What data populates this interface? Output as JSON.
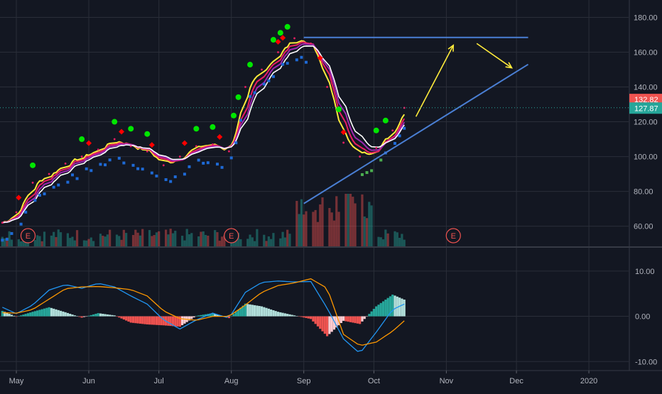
{
  "colors": {
    "background": "#131722",
    "grid": "#2a2e39",
    "axis_text": "#b2b5be",
    "up": "#26a69a",
    "down": "#ef5350",
    "price_label": "#ef5350",
    "current_label": "#26a69a",
    "macd": "#2196f3",
    "signal": "#ff9800",
    "ribbon_yellow": "#ffeb3b",
    "ribbon_pink": "#e91e63",
    "ribbon_purple": "#9c27b0",
    "ribbon_white": "#ffffff",
    "stop_blue": "#1e6ad6",
    "stop_green": "#4caf50",
    "signal_buy": "#00e600",
    "signal_sell": "#ff0000",
    "trend_line": "#4a7fd4",
    "arrow": "#ffeb3b"
  },
  "price_axis": {
    "ticks": [
      "180.00",
      "160.00",
      "140.00",
      "120.00",
      "100.00",
      "80.00",
      "60.00"
    ],
    "last_price_label": "132.82",
    "current_price_label": "127.87"
  },
  "macd_axis": {
    "ticks": [
      "10.00",
      "0.00",
      "-10.00"
    ]
  },
  "time_axis": {
    "ticks": [
      "May",
      "Jun",
      "Jul",
      "Aug",
      "Sep",
      "Oct",
      "Nov",
      "Dec",
      "2020"
    ]
  },
  "earnings_markers": [
    "E",
    "E",
    "E"
  ],
  "chart_data": [
    {
      "type": "line",
      "title": "",
      "xlabel": "",
      "ylabel": "",
      "x": [
        "Apr 25",
        "May 1",
        "May 8",
        "May 15",
        "May 22",
        "May 29",
        "Jun 5",
        "Jun 12",
        "Jun 19",
        "Jun 26",
        "Jul 3",
        "Jul 10",
        "Jul 17",
        "Jul 24",
        "Jul 31",
        "Aug 7",
        "Aug 14",
        "Aug 21",
        "Aug 28",
        "Sep 4",
        "Sep 11",
        "Sep 18",
        "Sep 25",
        "Oct 2",
        "Oct 9",
        "Oct 14"
      ],
      "series": [
        {
          "values": [
            62,
            68,
            85,
            90,
            96,
            100,
            104,
            110,
            106,
            103,
            95,
            100,
            106,
            107,
            103,
            140,
            150,
            160,
            168,
            165,
            140,
            108,
            100,
            105,
            115,
            128
          ]
        }
      ],
      "ylim": [
        48,
        190
      ],
      "xlim": [
        "Apr 24",
        "Jan 18"
      ],
      "y_axis_side": "right",
      "grid": true,
      "current_price": 127.87,
      "last_close_marker": 132.82,
      "annotations": [
        {
          "type": "horizontal_line",
          "y": 168.5,
          "from": "Sep 1",
          "to": "Dec 6"
        },
        {
          "type": "trend_line",
          "from": [
            "Sep 1",
            73
          ],
          "to": [
            "Dec 6",
            153
          ]
        },
        {
          "type": "arrow",
          "from": [
            "Oct 19",
            123
          ],
          "to": [
            "Nov 4",
            164
          ]
        },
        {
          "type": "arrow",
          "from": [
            "Nov 14",
            165
          ],
          "to": [
            "Nov 29",
            151
          ]
        }
      ]
    },
    {
      "type": "bar",
      "title": "",
      "xlabel": "",
      "ylabel": "",
      "x": [
        "Apr 25",
        "May 1",
        "May 8",
        "May 15",
        "May 22",
        "May 29",
        "Jun 5",
        "Jun 12",
        "Jun 19",
        "Jun 26",
        "Jul 3",
        "Jul 10",
        "Jul 17",
        "Jul 24",
        "Jul 31",
        "Aug 7",
        "Aug 14",
        "Aug 21",
        "Aug 28",
        "Sep 4",
        "Sep 11",
        "Sep 18",
        "Sep 25",
        "Oct 2",
        "Oct 9",
        "Oct 14"
      ],
      "series": [
        {
          "values": [
            2,
            0.6,
            2.5,
            5.8,
            7,
            6.2,
            7.3,
            6.5,
            4.5,
            2.7,
            -0.8,
            -2.8,
            -0.8,
            0.7,
            -0.4,
            5.3,
            7.5,
            7.8,
            7.6,
            7.7,
            1.8,
            -5,
            -8.2,
            -3.5,
            1.5,
            2.7
          ]
        },
        {
          "values": [
            0.8,
            0.7,
            1.5,
            3.8,
            6.1,
            6.5,
            6.6,
            6.3,
            5.9,
            4.5,
            1.2,
            -0.5,
            -0.9,
            0,
            0,
            2.5,
            5.3,
            6.8,
            7.4,
            8.3,
            6.2,
            -4,
            -6.5,
            -5.7,
            -3.3,
            -1
          ]
        }
      ],
      "histogram": [
        1.2,
        -0.1,
        1,
        2,
        0.9,
        -0.3,
        0.7,
        0.2,
        -1.4,
        -1.8,
        -2,
        -2.3,
        0.1,
        0.7,
        -0.4,
        2.8,
        2.2,
        1,
        0.2,
        -0.6,
        -4.4,
        -1,
        -1.7,
        2.2,
        4.8,
        3.7
      ],
      "ylim": [
        -12,
        15
      ],
      "y_axis_side": "right",
      "grid": true
    }
  ]
}
